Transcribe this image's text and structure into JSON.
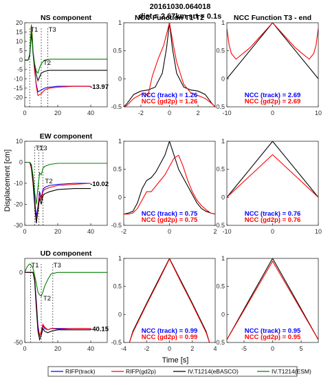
{
  "figure": {
    "title_line1": "20161030.064018",
    "title_line2": "dist = 2.67km  srt = 0.1s",
    "ylabel": "Displacement [cm]",
    "xlabel": "Time [s]"
  },
  "colors": {
    "track": "#0000ff",
    "gd2p": "#ff0000",
    "ebasco": "#000000",
    "esm": "#008000",
    "ncc_track_label": "#0000ff",
    "ncc_gd2p_label": "#ff0000"
  },
  "legend": {
    "entries": [
      {
        "label": "RIFP(track)",
        "color": "#0000ff"
      },
      {
        "label": "RIFP(gd2p)",
        "color": "#ff0000"
      },
      {
        "label": "IV.T1214(eBASCO)",
        "color": "#000000"
      },
      {
        "label": "IV.T1214(ESM)",
        "color": "#008000"
      }
    ]
  },
  "chart_data": [
    {
      "type": "line",
      "title": "NS component",
      "component": "NS",
      "xlim": [
        0,
        50
      ],
      "ylim": [
        -25,
        20
      ],
      "xticks": [
        0,
        20,
        40
      ],
      "yticks": [
        -20,
        -15,
        -10,
        -5,
        0,
        5,
        10,
        15,
        20
      ],
      "markers": [
        {
          "label": "T1",
          "x": 3
        },
        {
          "label": "T2",
          "x": 10
        },
        {
          "label": "T3",
          "x": 14
        }
      ],
      "final_value_label": "-13.97",
      "series": [
        {
          "name": "RIFP(track)",
          "color": "#0000ff",
          "x": [
            0,
            2,
            3,
            3.5,
            4,
            4.5,
            5,
            6,
            7,
            8,
            10,
            12,
            15,
            20,
            30,
            40
          ],
          "y": [
            0,
            0,
            2,
            9,
            16,
            12,
            4,
            -6,
            -13,
            -17,
            -16,
            -15,
            -14.5,
            -14,
            -14,
            -14
          ]
        },
        {
          "name": "RIFP(gd2p)",
          "color": "#ff0000",
          "x": [
            0,
            2,
            3,
            3.5,
            4,
            4.5,
            5,
            6,
            7,
            8,
            10,
            12,
            15,
            20,
            30,
            40
          ],
          "y": [
            0,
            0,
            3,
            10,
            19,
            14,
            5,
            -5,
            -14,
            -19,
            -18,
            -16,
            -15,
            -14.5,
            -14,
            -14
          ]
        },
        {
          "name": "IV.T1214(eBASCO)",
          "color": "#000000",
          "x": [
            0,
            2,
            3,
            3.5,
            4,
            4.5,
            5,
            6,
            7,
            8,
            9,
            10,
            12,
            15,
            20,
            30,
            40,
            50
          ],
          "y": [
            0,
            0,
            2,
            8,
            14,
            10,
            4,
            -3,
            -8,
            -11,
            -9,
            -7,
            -6,
            -5.5,
            -5.5,
            -5.5,
            -5.5,
            -5.5
          ]
        },
        {
          "name": "IV.T1214(ESM)",
          "color": "#008000",
          "x": [
            0,
            2,
            3,
            3.5,
            4,
            4.5,
            5,
            6,
            7,
            8,
            9,
            10,
            12,
            15,
            20,
            30,
            40,
            50
          ],
          "y": [
            0,
            0,
            3,
            10,
            18,
            13,
            5,
            -2,
            -6,
            -7,
            -4,
            -2,
            0,
            0.5,
            0.5,
            0.5,
            0.5,
            0.5
          ]
        }
      ],
      "ncc": null
    },
    {
      "type": "line",
      "title": "NCC Function T1-T2",
      "component": "NS",
      "xlim": [
        -3.2,
        3.2
      ],
      "ylim": [
        -0.5,
        1
      ],
      "xticks": [
        -2,
        0,
        2
      ],
      "yticks": [
        -0.5,
        0,
        0.5,
        1
      ],
      "series": [
        {
          "name": "NCC (track)",
          "color": "#000000",
          "x": [
            -3.2,
            -3,
            -2.5,
            -2,
            -1.5,
            -1,
            -0.5,
            -0.2,
            0,
            0.2,
            0.5,
            1,
            1.5,
            2,
            2.5,
            3,
            3.2
          ],
          "y": [
            -0.5,
            -0.45,
            -0.28,
            -0.22,
            -0.2,
            -0.15,
            0.1,
            0.55,
            1.0,
            0.55,
            0.1,
            -0.15,
            -0.2,
            -0.22,
            -0.28,
            -0.45,
            -0.5
          ]
        },
        {
          "name": "NCC (gd2p)",
          "color": "#ff0000",
          "x": [
            -3.2,
            -3,
            -2.5,
            -2,
            -1.8,
            -1.5,
            -1.2,
            -0.8,
            -0.4,
            -0.2,
            0,
            0.2,
            0.5,
            1,
            1.5,
            2,
            2.5,
            3,
            3.2
          ],
          "y": [
            -0.5,
            -0.48,
            -0.35,
            -0.28,
            -0.25,
            -0.3,
            0.05,
            0.35,
            0.6,
            0.8,
            1.0,
            0.7,
            0.3,
            -0.1,
            -0.25,
            -0.3,
            -0.35,
            -0.45,
            -0.5
          ]
        }
      ],
      "ncc": {
        "track_label": "NCC (track) = 1.26",
        "gd2p_label": "NCC (gd2p) = 1.26"
      }
    },
    {
      "type": "line",
      "title": "NCC Function T3 - end",
      "component": "NS",
      "xlim": [
        -10,
        10
      ],
      "ylim": [
        -0.5,
        1
      ],
      "xticks": [
        -10,
        0,
        10
      ],
      "yticks": [
        -0.5,
        0,
        0.5,
        1
      ],
      "series": [
        {
          "name": "NCC (track)",
          "color": "#000000",
          "x": [
            -10,
            -5,
            0,
            5,
            10
          ],
          "y": [
            0,
            0.5,
            1,
            0.5,
            0
          ]
        },
        {
          "name": "NCC (gd2p)",
          "color": "#ff0000",
          "x": [
            -10,
            -9.5,
            -9,
            -8,
            -5,
            0,
            5,
            8,
            9,
            9.5,
            10
          ],
          "y": [
            0.9,
            0.6,
            0.45,
            0.35,
            0.55,
            1,
            0.55,
            0.35,
            0.45,
            0.6,
            0.9
          ]
        }
      ],
      "ncc": {
        "track_label": "NCC (track) = 2.69",
        "gd2p_label": "NCC (gd2p) = 2.69"
      }
    },
    {
      "type": "line",
      "title": "EW component",
      "component": "EW",
      "xlim": [
        0,
        50
      ],
      "ylim": [
        -30,
        10
      ],
      "xticks": [
        0,
        20,
        40
      ],
      "yticks": [
        -30,
        -20,
        -10,
        0,
        10
      ],
      "markers": [
        {
          "label": "T1",
          "x": 6
        },
        {
          "label": "T3",
          "x": 8.5
        },
        {
          "label": "T2",
          "x": 11
        }
      ],
      "final_value_label": "-10.02",
      "series": [
        {
          "name": "RIFP(track)",
          "color": "#0000ff",
          "x": [
            0,
            3,
            4,
            5,
            6,
            7,
            8,
            9,
            10,
            11,
            12,
            15,
            20,
            30,
            40
          ],
          "y": [
            0,
            0,
            -2,
            -8,
            -18,
            -26,
            -21,
            -14,
            -17,
            -13,
            -12,
            -11,
            -10.5,
            -10,
            -10
          ]
        },
        {
          "name": "RIFP(gd2p)",
          "color": "#ff0000",
          "x": [
            0,
            3,
            4,
            5,
            6,
            7,
            8,
            9,
            10,
            11,
            12,
            15,
            20,
            30,
            40
          ],
          "y": [
            0,
            0,
            -3,
            -10,
            -20,
            -28,
            -22,
            -15,
            -18,
            -14,
            -13,
            -12,
            -11,
            -10.5,
            -10
          ]
        },
        {
          "name": "IV.T1214(eBASCO)",
          "color": "#000000",
          "x": [
            0,
            3,
            4,
            5,
            6,
            7,
            8,
            9,
            10,
            11,
            12,
            15,
            20,
            30,
            40
          ],
          "y": [
            0,
            0,
            -2,
            -9,
            -20,
            -29,
            -23,
            -17,
            -20,
            -16,
            -15,
            -14,
            -13,
            -12.5,
            -12.5
          ]
        },
        {
          "name": "IV.T1214(ESM)",
          "color": "#008000",
          "x": [
            0,
            3,
            4,
            5,
            6,
            7,
            8,
            9,
            10,
            11,
            12,
            15,
            20,
            30,
            40,
            50
          ],
          "y": [
            0,
            0,
            -1,
            -6,
            -14,
            -20,
            -12,
            -5,
            -6,
            -3,
            -2,
            -1,
            -0.5,
            -0.5,
            -0.5,
            -0.5
          ]
        }
      ],
      "ncc": null
    },
    {
      "type": "line",
      "title": "",
      "component": "EW",
      "xlim": [
        -2,
        2
      ],
      "ylim": [
        -0.5,
        1
      ],
      "xticks": [
        -2,
        0,
        2
      ],
      "yticks": [
        -0.5,
        0,
        0.5,
        1
      ],
      "series": [
        {
          "name": "NCC (track)",
          "color": "#000000",
          "x": [
            -2,
            -1.8,
            -1.6,
            -1.4,
            -1.2,
            -1,
            -0.8,
            -0.6,
            -0.4,
            -0.2,
            0,
            0.2,
            0.4,
            0.6,
            0.8,
            1,
            1.2,
            1.4,
            1.6,
            1.8,
            2
          ],
          "y": [
            -0.3,
            -0.28,
            -0.25,
            -0.1,
            0.15,
            0.3,
            0.35,
            0.45,
            0.6,
            0.75,
            1.0,
            0.75,
            0.5,
            0.35,
            0.2,
            0.05,
            -0.1,
            -0.2,
            -0.25,
            -0.28,
            -0.3
          ]
        },
        {
          "name": "NCC (gd2p)",
          "color": "#ff0000",
          "x": [
            -2,
            -1.8,
            -1.6,
            -1.4,
            -1.2,
            -1,
            -0.8,
            -0.6,
            -0.4,
            -0.2,
            0,
            0.2,
            0.4,
            0.6,
            0.8,
            1,
            1.2,
            1.4,
            1.6,
            1.8,
            2
          ],
          "y": [
            -0.3,
            -0.3,
            -0.28,
            -0.2,
            -0.05,
            0.1,
            0.1,
            0.2,
            0.3,
            0.4,
            0.55,
            0.7,
            0.75,
            0.55,
            0.3,
            0.1,
            -0.05,
            -0.15,
            -0.22,
            -0.28,
            -0.3
          ]
        }
      ],
      "ncc": {
        "track_label": "NCC (track) = 0.75",
        "gd2p_label": "NCC (gd2p) = 0.75"
      }
    },
    {
      "type": "line",
      "title": "",
      "component": "EW",
      "xlim": [
        -10,
        10
      ],
      "ylim": [
        -0.5,
        1
      ],
      "xticks": [
        -10,
        0,
        10
      ],
      "yticks": [
        -0.5,
        0,
        0.5,
        1
      ],
      "series": [
        {
          "name": "NCC (track)",
          "color": "#000000",
          "x": [
            -10,
            -5,
            0,
            5,
            10
          ],
          "y": [
            0,
            0.5,
            1,
            0.5,
            0
          ]
        },
        {
          "name": "NCC (gd2p)",
          "color": "#ff0000",
          "x": [
            -10,
            -5,
            0,
            5,
            10
          ],
          "y": [
            0,
            0.38,
            0.76,
            0.38,
            0
          ]
        }
      ],
      "ncc": {
        "track_label": "NCC (track) = 0.76",
        "gd2p_label": "NCC (gd2p) = 0.76"
      }
    },
    {
      "type": "line",
      "title": "UD component",
      "component": "UD",
      "xlim": [
        0,
        50
      ],
      "ylim": [
        -50,
        10
      ],
      "xticks": [
        0,
        20,
        40
      ],
      "yticks": [
        -50,
        0
      ],
      "markers": [
        {
          "label": "T1",
          "x": 3.5
        },
        {
          "label": "T3",
          "x": 17
        },
        {
          "label": "T2",
          "x": 10
        }
      ],
      "final_value_label": "-40.15",
      "series": [
        {
          "name": "RIFP(track)",
          "color": "#0000ff",
          "x": [
            0,
            5,
            6,
            7,
            8,
            9,
            10,
            11,
            12,
            14,
            16,
            20,
            30,
            40
          ],
          "y": [
            0,
            0,
            -5,
            -20,
            -38,
            -45,
            -43,
            -38,
            -40,
            -41,
            -40,
            -40,
            -40,
            -40
          ]
        },
        {
          "name": "RIFP(gd2p)",
          "color": "#ff0000",
          "x": [
            0,
            5,
            6,
            7,
            8,
            9,
            10,
            11,
            12,
            14,
            16,
            20,
            30,
            40
          ],
          "y": [
            0,
            0,
            -5,
            -22,
            -40,
            -46,
            -42,
            -37,
            -39,
            -41,
            -40,
            -40.5,
            -40,
            -40
          ]
        },
        {
          "name": "IV.T1214(eBASCO)",
          "color": "#000000",
          "x": [
            0,
            5,
            6,
            7,
            8,
            9,
            10,
            11,
            12,
            14,
            16,
            20,
            30,
            40
          ],
          "y": [
            0,
            0,
            -6,
            -25,
            -42,
            -48,
            -45,
            -40,
            -42,
            -43,
            -42,
            -41,
            -41,
            -41
          ]
        },
        {
          "name": "IV.T1214(ESM)",
          "color": "#008000",
          "x": [
            0,
            1,
            2,
            3,
            4,
            5,
            6,
            7,
            8,
            9,
            10,
            11,
            12,
            14,
            16,
            20,
            30,
            40,
            50
          ],
          "y": [
            0,
            3,
            5,
            6,
            5,
            3,
            -2,
            -8,
            -14,
            -16,
            -17,
            -14,
            -10,
            -5,
            -1,
            0,
            0,
            0,
            0
          ]
        }
      ],
      "ncc": null
    },
    {
      "type": "line",
      "title": "",
      "component": "UD",
      "xlim": [
        -4,
        4
      ],
      "ylim": [
        -0.5,
        1
      ],
      "xticks": [
        -4,
        -2,
        0,
        2,
        4
      ],
      "yticks": [
        -0.5,
        0,
        0.5,
        1
      ],
      "series": [
        {
          "name": "NCC (track)",
          "color": "#000000",
          "x": [
            -3.5,
            -3.2,
            -2,
            -1,
            0,
            1,
            2,
            3.2,
            3.5
          ],
          "y": [
            -0.5,
            -0.3,
            0.2,
            0.6,
            1,
            0.6,
            0.2,
            -0.3,
            -0.5
          ]
        },
        {
          "name": "NCC (gd2p)",
          "color": "#ff0000",
          "x": [
            -3.5,
            -3.2,
            -2,
            -1,
            0,
            1,
            2,
            3.2,
            3.5
          ],
          "y": [
            -0.5,
            -0.32,
            0.18,
            0.58,
            0.99,
            0.58,
            0.18,
            -0.32,
            -0.5
          ]
        }
      ],
      "ncc": {
        "track_label": "NCC (track) = 0.99",
        "gd2p_label": "NCC (gd2p) = 0.99"
      }
    },
    {
      "type": "line",
      "title": "",
      "component": "UD",
      "xlim": [
        -8,
        8
      ],
      "ylim": [
        -0.5,
        1
      ],
      "xticks": [
        -5,
        0,
        5
      ],
      "yticks": [
        -0.5,
        0,
        0.5,
        1
      ],
      "series": [
        {
          "name": "NCC (track)",
          "color": "#000000",
          "x": [
            -8,
            -4,
            0,
            4,
            8
          ],
          "y": [
            -0.45,
            0.28,
            1,
            0.28,
            -0.45
          ]
        },
        {
          "name": "NCC (gd2p)",
          "color": "#ff0000",
          "x": [
            -8,
            -4,
            0,
            4,
            8
          ],
          "y": [
            -0.45,
            0.25,
            0.95,
            0.25,
            -0.45
          ]
        }
      ],
      "ncc": {
        "track_label": "NCC (track) = 0.95",
        "gd2p_label": "NCC (gd2p) = 0.95"
      }
    }
  ]
}
